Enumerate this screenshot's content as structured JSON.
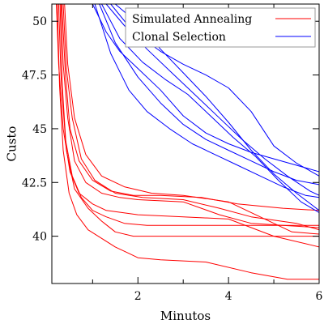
{
  "chart_data": {
    "type": "line",
    "title": "",
    "xlabel": "Minutos",
    "ylabel": "Custo",
    "xlim": [
      0.1,
      6.0
    ],
    "ylim": [
      37.8,
      50.8
    ],
    "x_ticks": [
      2,
      4,
      6
    ],
    "x_minor_ticks": [
      1,
      3,
      5
    ],
    "y_ticks": [
      40,
      42.5,
      45,
      47.5,
      50
    ],
    "y_tick_labels": [
      "40",
      "42.5",
      "45",
      "47.5",
      "50"
    ],
    "grid": false,
    "legend": {
      "placement": "top-right",
      "entries": [
        {
          "label": "Simulated Annealing",
          "color": "#ff0000"
        },
        {
          "label": "Clonal Selection",
          "color": "#0000ff"
        }
      ]
    },
    "series": [
      {
        "group": "Simulated Annealing",
        "color": "#ff0000",
        "points": [
          [
            0.25,
            50.8
          ],
          [
            0.3,
            47.5
          ],
          [
            0.4,
            44.5
          ],
          [
            0.55,
            42.8
          ],
          [
            0.75,
            41.8
          ],
          [
            1.0,
            41.2
          ],
          [
            1.3,
            40.9
          ],
          [
            1.7,
            40.6
          ],
          [
            2.2,
            40.5
          ],
          [
            3.0,
            40.5
          ],
          [
            4.0,
            40.5
          ],
          [
            5.0,
            40.5
          ],
          [
            6.0,
            40.5
          ]
        ]
      },
      {
        "group": "Simulated Annealing",
        "color": "#ff0000",
        "points": [
          [
            0.3,
            50.8
          ],
          [
            0.35,
            48.0
          ],
          [
            0.45,
            45.5
          ],
          [
            0.6,
            43.5
          ],
          [
            0.85,
            42.5
          ],
          [
            1.2,
            42.0
          ],
          [
            1.6,
            41.8
          ],
          [
            2.0,
            41.7
          ],
          [
            3.0,
            41.6
          ],
          [
            3.8,
            41.0
          ],
          [
            4.5,
            40.6
          ],
          [
            5.2,
            40.5
          ],
          [
            6.0,
            40.4
          ]
        ]
      },
      {
        "group": "Simulated Annealing",
        "color": "#ff0000",
        "points": [
          [
            0.32,
            50.8
          ],
          [
            0.4,
            47.5
          ],
          [
            0.5,
            45.0
          ],
          [
            0.7,
            43.5
          ],
          [
            1.0,
            42.6
          ],
          [
            1.4,
            42.1
          ],
          [
            1.9,
            41.9
          ],
          [
            2.5,
            41.9
          ],
          [
            3.4,
            41.8
          ],
          [
            4.2,
            41.5
          ],
          [
            5.2,
            41.3
          ],
          [
            6.0,
            41.2
          ]
        ]
      },
      {
        "group": "Simulated Annealing",
        "color": "#ff0000",
        "points": [
          [
            0.2,
            50.8
          ],
          [
            0.25,
            48.0
          ],
          [
            0.35,
            45.0
          ],
          [
            0.5,
            43.0
          ],
          [
            0.7,
            42.0
          ],
          [
            1.0,
            41.5
          ],
          [
            1.3,
            41.2
          ],
          [
            2.0,
            41.0
          ],
          [
            3.0,
            40.9
          ],
          [
            4.0,
            40.8
          ],
          [
            5.0,
            40.0
          ],
          [
            5.8,
            39.6
          ],
          [
            6.0,
            39.5
          ]
        ]
      },
      {
        "group": "Simulated Annealing",
        "color": "#ff0000",
        "points": [
          [
            0.28,
            50.8
          ],
          [
            0.33,
            47.0
          ],
          [
            0.42,
            44.0
          ],
          [
            0.6,
            42.2
          ],
          [
            0.9,
            41.3
          ],
          [
            1.2,
            40.7
          ],
          [
            1.5,
            40.2
          ],
          [
            1.9,
            40.0
          ],
          [
            2.5,
            40.0
          ],
          [
            3.5,
            40.0
          ],
          [
            4.5,
            40.0
          ],
          [
            5.5,
            40.0
          ],
          [
            6.0,
            40.0
          ]
        ]
      },
      {
        "group": "Simulated Annealing",
        "color": "#ff0000",
        "points": [
          [
            0.35,
            50.8
          ],
          [
            0.42,
            47.8
          ],
          [
            0.55,
            45.5
          ],
          [
            0.75,
            43.6
          ],
          [
            1.05,
            42.6
          ],
          [
            1.5,
            42.0
          ],
          [
            2.1,
            41.8
          ],
          [
            3.0,
            41.7
          ],
          [
            3.8,
            41.3
          ],
          [
            4.5,
            40.9
          ],
          [
            5.5,
            40.6
          ],
          [
            6.0,
            40.3
          ]
        ]
      },
      {
        "group": "Simulated Annealing",
        "color": "#ff0000",
        "points": [
          [
            0.22,
            50.8
          ],
          [
            0.27,
            47.0
          ],
          [
            0.35,
            44.0
          ],
          [
            0.48,
            42.0
          ],
          [
            0.65,
            41.0
          ],
          [
            0.9,
            40.3
          ],
          [
            1.2,
            39.9
          ],
          [
            1.5,
            39.5
          ],
          [
            1.8,
            39.2
          ],
          [
            2.0,
            39.0
          ],
          [
            2.5,
            38.9
          ],
          [
            3.5,
            38.8
          ],
          [
            4.5,
            38.3
          ],
          [
            5.3,
            38.0
          ],
          [
            6.0,
            38.0
          ]
        ]
      },
      {
        "group": "Simulated Annealing",
        "color": "#ff0000",
        "points": [
          [
            0.38,
            50.8
          ],
          [
            0.45,
            48.0
          ],
          [
            0.6,
            45.5
          ],
          [
            0.85,
            43.8
          ],
          [
            1.2,
            42.8
          ],
          [
            1.7,
            42.3
          ],
          [
            2.3,
            42.0
          ],
          [
            3.0,
            41.9
          ],
          [
            4.0,
            41.6
          ],
          [
            4.8,
            40.8
          ],
          [
            5.4,
            40.2
          ],
          [
            6.0,
            40.1
          ]
        ]
      },
      {
        "group": "Clonal Selection",
        "color": "#0000ff",
        "points": [
          [
            1.0,
            50.8
          ],
          [
            1.3,
            49.5
          ],
          [
            1.6,
            48.6
          ],
          [
            2.0,
            47.8
          ],
          [
            2.5,
            46.8
          ],
          [
            3.0,
            45.6
          ],
          [
            3.5,
            44.8
          ],
          [
            4.0,
            44.3
          ],
          [
            4.5,
            43.9
          ],
          [
            5.0,
            43.6
          ],
          [
            5.5,
            43.3
          ],
          [
            6.0,
            43.0
          ]
        ]
      },
      {
        "group": "Clonal Selection",
        "color": "#0000ff",
        "points": [
          [
            1.15,
            50.8
          ],
          [
            1.5,
            49.0
          ],
          [
            2.0,
            47.4
          ],
          [
            2.5,
            46.2
          ],
          [
            3.0,
            45.2
          ],
          [
            3.5,
            44.5
          ],
          [
            4.0,
            44.0
          ],
          [
            4.5,
            43.5
          ],
          [
            5.0,
            43.0
          ],
          [
            5.5,
            42.6
          ],
          [
            6.0,
            42.4
          ]
        ]
      },
      {
        "group": "Clonal Selection",
        "color": "#0000ff",
        "points": [
          [
            1.05,
            50.8
          ],
          [
            1.4,
            48.5
          ],
          [
            1.8,
            46.8
          ],
          [
            2.2,
            45.8
          ],
          [
            2.7,
            45.0
          ],
          [
            3.2,
            44.3
          ],
          [
            3.7,
            43.8
          ],
          [
            4.2,
            43.3
          ],
          [
            4.7,
            42.8
          ],
          [
            5.2,
            42.3
          ],
          [
            5.7,
            41.9
          ],
          [
            6.0,
            41.8
          ]
        ]
      },
      {
        "group": "Clonal Selection",
        "color": "#0000ff",
        "points": [
          [
            1.3,
            50.8
          ],
          [
            1.7,
            49.8
          ],
          [
            2.2,
            48.7
          ],
          [
            2.8,
            47.5
          ],
          [
            3.3,
            46.5
          ],
          [
            3.8,
            45.5
          ],
          [
            4.3,
            44.5
          ],
          [
            4.8,
            43.6
          ],
          [
            5.3,
            42.8
          ],
          [
            5.8,
            42.1
          ],
          [
            6.0,
            41.9
          ]
        ]
      },
      {
        "group": "Clonal Selection",
        "color": "#0000ff",
        "points": [
          [
            1.4,
            50.8
          ],
          [
            1.9,
            49.5
          ],
          [
            2.5,
            48.6
          ],
          [
            3.0,
            48.0
          ],
          [
            3.5,
            47.5
          ],
          [
            4.0,
            46.9
          ],
          [
            4.5,
            45.8
          ],
          [
            5.0,
            44.2
          ],
          [
            5.5,
            43.4
          ],
          [
            6.0,
            42.8
          ]
        ]
      },
      {
        "group": "Clonal Selection",
        "color": "#0000ff",
        "points": [
          [
            1.2,
            50.8
          ],
          [
            1.6,
            49.2
          ],
          [
            2.1,
            48.1
          ],
          [
            2.6,
            47.3
          ],
          [
            3.1,
            46.6
          ],
          [
            3.6,
            45.6
          ],
          [
            4.1,
            44.6
          ],
          [
            4.6,
            43.7
          ],
          [
            5.1,
            42.6
          ],
          [
            5.6,
            41.6
          ],
          [
            6.0,
            41.1
          ]
        ]
      },
      {
        "group": "Clonal Selection",
        "color": "#0000ff",
        "points": [
          [
            1.5,
            50.8
          ],
          [
            2.0,
            49.9
          ],
          [
            2.5,
            48.7
          ],
          [
            3.0,
            47.6
          ],
          [
            3.5,
            46.5
          ],
          [
            4.0,
            45.3
          ],
          [
            4.5,
            44.0
          ],
          [
            5.0,
            42.9
          ],
          [
            5.5,
            42.0
          ],
          [
            6.0,
            41.2
          ]
        ]
      }
    ]
  }
}
